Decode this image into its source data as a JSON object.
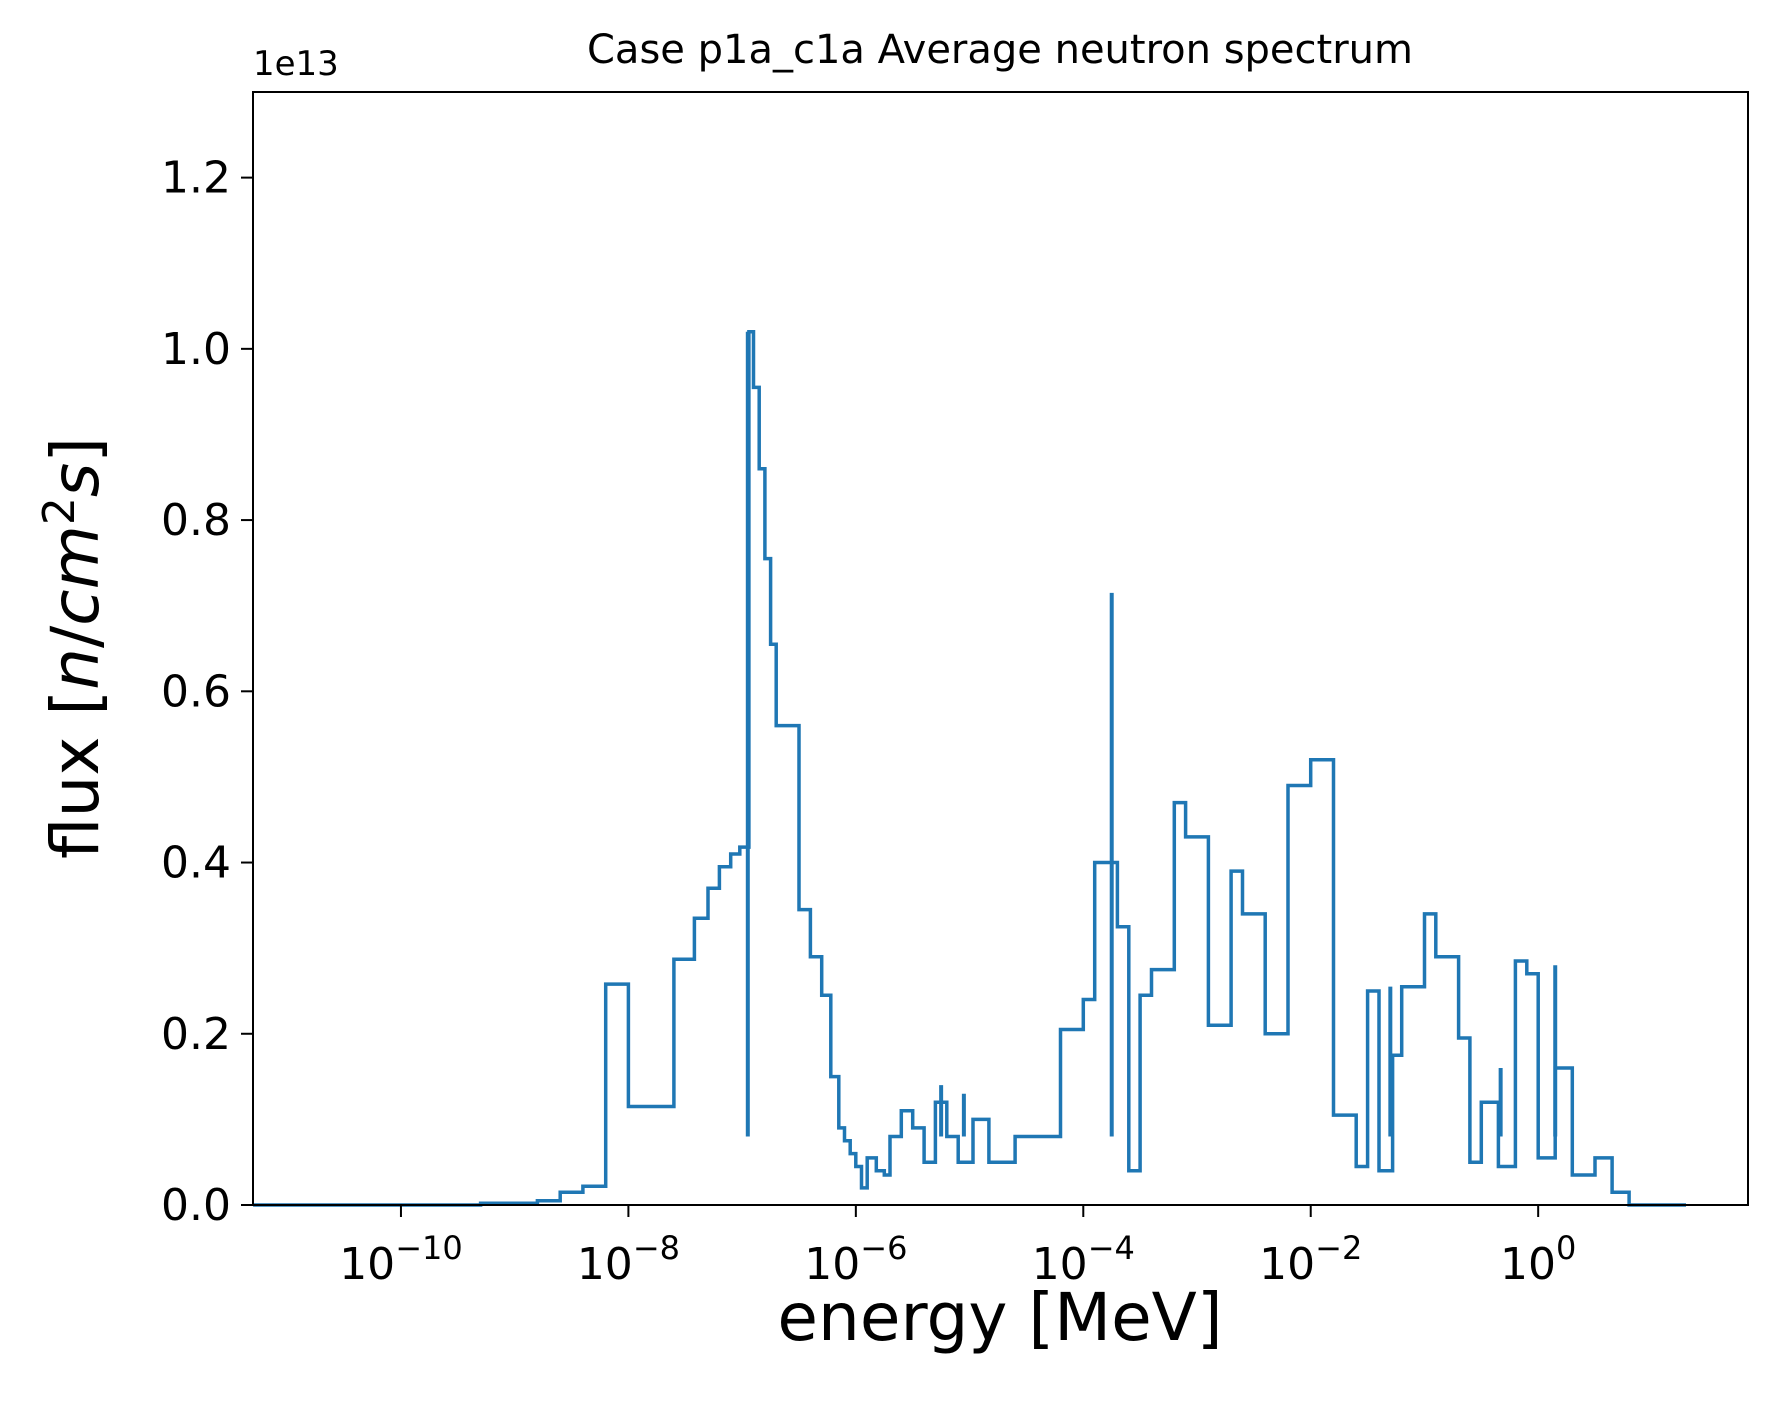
{
  "chart_data": {
    "type": "line",
    "title": "Case p1a_c1a Average neutron spectrum",
    "xlabel": "energy [MeV]",
    "ylabel_prefix": "flux [",
    "ylabel_suffix": "]",
    "ylabel_n": "n",
    "ylabel_cm": "cm",
    "ylabel_sup": "2",
    "ylabel_s": "s",
    "y_offset_label": "1e13",
    "y_multiplier": 10000000000000.0,
    "xscale": "log",
    "xlim": [
      5e-12,
      70
    ],
    "ylim": [
      0,
      1.3
    ],
    "grid": false,
    "line_color": "#1f77b4",
    "yticks": [
      0.0,
      0.2,
      0.4,
      0.6,
      0.8,
      1.0,
      1.2
    ],
    "ytick_labels": [
      "0.0",
      "0.2",
      "0.4",
      "0.6",
      "0.8",
      "1.0",
      "1.2"
    ],
    "xtick_exponents": [
      -10,
      -8,
      -6,
      -4,
      -2,
      0
    ],
    "xtick_base": "10",
    "step": {
      "edges_log10": [
        -11.3,
        -9.3,
        -8.8,
        -8.6,
        -8.4,
        -8.2,
        -8.0,
        -7.6,
        -7.42,
        -7.3,
        -7.2,
        -7.1,
        -7.02,
        -6.94,
        -6.9,
        -6.85,
        -6.8,
        -6.75,
        -6.7,
        -6.5,
        -6.4,
        -6.3,
        -6.22,
        -6.15,
        -6.1,
        -6.05,
        -6.0,
        -5.95,
        -5.9,
        -5.82,
        -5.75,
        -5.7,
        -5.6,
        -5.5,
        -5.4,
        -5.3,
        -5.2,
        -5.1,
        -4.97,
        -4.83,
        -4.6,
        -4.2,
        -4.0,
        -3.9,
        -3.7,
        -3.6,
        -3.5,
        -3.4,
        -3.2,
        -3.1,
        -2.9,
        -2.7,
        -2.6,
        -2.4,
        -2.2,
        -2.0,
        -1.8,
        -1.6,
        -1.5,
        -1.4,
        -1.28,
        -1.2,
        -1.0,
        -0.9,
        -0.7,
        -0.6,
        -0.5,
        -0.35,
        -0.2,
        -0.1,
        0.0,
        0.15,
        0.3,
        0.5,
        0.65,
        0.8,
        1.3
      ],
      "values": [
        0.0,
        0.002,
        0.005,
        0.015,
        0.022,
        0.258,
        0.115,
        0.287,
        0.335,
        0.37,
        0.395,
        0.41,
        0.418,
        1.02,
        0.955,
        0.86,
        0.755,
        0.655,
        0.56,
        0.345,
        0.29,
        0.245,
        0.15,
        0.09,
        0.075,
        0.06,
        0.045,
        0.02,
        0.055,
        0.04,
        0.035,
        0.08,
        0.11,
        0.09,
        0.05,
        0.12,
        0.08,
        0.05,
        0.1,
        0.05,
        0.08,
        0.205,
        0.24,
        0.4,
        0.325,
        0.04,
        0.245,
        0.275,
        0.47,
        0.43,
        0.21,
        0.39,
        0.34,
        0.2,
        0.49,
        0.52,
        0.105,
        0.045,
        0.25,
        0.04,
        0.175,
        0.255,
        0.34,
        0.29,
        0.195,
        0.05,
        0.12,
        0.045,
        0.285,
        0.27,
        0.055,
        0.16,
        0.035,
        0.055,
        0.015,
        0.0
      ]
    },
    "spikes": [
      {
        "x_log10": -3.75,
        "y": 0.715
      },
      {
        "x_log10": -6.95,
        "y": 1.02
      },
      {
        "x_log10": -5.05,
        "y": 0.13
      },
      {
        "x_log10": -5.25,
        "y": 0.14
      },
      {
        "x_log10": -1.3,
        "y": 0.255
      },
      {
        "x_log10": -0.33,
        "y": 0.16
      },
      {
        "x_log10": 0.15,
        "y": 0.28
      }
    ]
  }
}
